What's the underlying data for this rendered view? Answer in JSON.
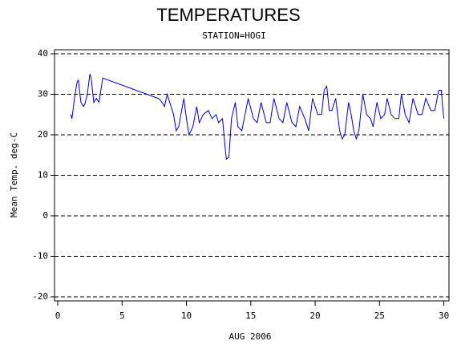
{
  "chart_data": {
    "type": "line",
    "title": "TEMPERATURES",
    "subtitle": "STATION=HOGI",
    "x_label": "AUG 2006",
    "y_label": "Mean Temp. deg-C",
    "xlim": [
      -0.25,
      30.4
    ],
    "ylim": [
      -21,
      41
    ],
    "xticks": [
      0,
      5,
      10,
      15,
      20,
      25,
      30
    ],
    "yticks": [
      -20,
      -10,
      0,
      10,
      20,
      30,
      40
    ],
    "grid": true,
    "grid_style": "dashed",
    "x": [
      1.0,
      1.1,
      1.3,
      1.5,
      1.6,
      1.8,
      2.0,
      2.1,
      2.3,
      2.5,
      2.6,
      2.8,
      3.0,
      3.2,
      3.5,
      7.8,
      8.0,
      8.3,
      8.5,
      8.7,
      9.0,
      9.2,
      9.4,
      9.8,
      10.0,
      10.2,
      10.5,
      10.8,
      11.0,
      11.3,
      11.7,
      12.0,
      12.3,
      12.5,
      12.8,
      13.0,
      13.1,
      13.3,
      13.5,
      13.8,
      14.0,
      14.3,
      14.8,
      15.2,
      15.5,
      15.8,
      16.2,
      16.5,
      16.8,
      17.2,
      17.5,
      17.8,
      18.2,
      18.5,
      18.8,
      19.2,
      19.5,
      19.8,
      20.2,
      20.5,
      20.7,
      20.9,
      21.1,
      21.3,
      21.6,
      21.9,
      22.1,
      22.3,
      22.6,
      22.8,
      23.0,
      23.2,
      23.4,
      23.7,
      24.0,
      24.3,
      24.5,
      24.8,
      25.1,
      25.4,
      25.6,
      25.9,
      26.2,
      26.5,
      26.7,
      27.0,
      27.3,
      27.6,
      28.0,
      28.3,
      28.6,
      29.0,
      29.3,
      29.6,
      29.8,
      29.9,
      30.0
    ],
    "series": [
      {
        "color": "#0000cc",
        "values": [
          25,
          24,
          29,
          33,
          33.5,
          28,
          27,
          27.5,
          30,
          35,
          34,
          28,
          29,
          28,
          34,
          29,
          28.5,
          27,
          30,
          28,
          25,
          21,
          22,
          29,
          24,
          20,
          22,
          27,
          23,
          25,
          26,
          24,
          25,
          23,
          24,
          17,
          14,
          14.5,
          24,
          28,
          22,
          21,
          29,
          24,
          23,
          28,
          23,
          23,
          29,
          24,
          23,
          28,
          23,
          22,
          27,
          24,
          21,
          29,
          25,
          25,
          31,
          32,
          26,
          26,
          29,
          21,
          19,
          20,
          28,
          25,
          21,
          19,
          21,
          30,
          25,
          24,
          22,
          28,
          24,
          25,
          29,
          25,
          24,
          24,
          30,
          25,
          23,
          29,
          25,
          25,
          29,
          26,
          26,
          31,
          31,
          27,
          24
        ]
      }
    ]
  }
}
